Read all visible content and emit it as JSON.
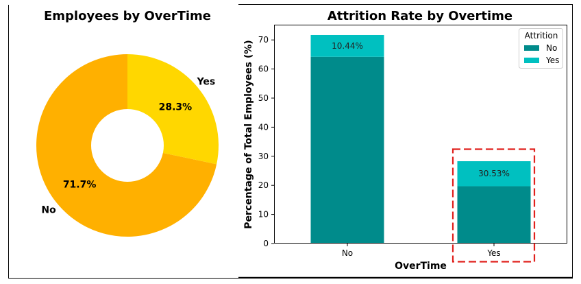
{
  "chart_data": [
    {
      "type": "pie",
      "title": "Employees by OverTime",
      "categories": [
        "No",
        "Yes"
      ],
      "values": [
        71.7,
        28.3
      ],
      "value_labels": [
        "71.7%",
        "28.3%"
      ],
      "colors": [
        "#ffb000",
        "#ffd700"
      ],
      "donut": true,
      "legend": "none"
    },
    {
      "type": "bar",
      "stacked": true,
      "title": "Attrition Rate by Overtime",
      "xlabel": "OverTime",
      "ylabel": "Percentage of Total Employees (%)",
      "categories": [
        "No",
        "Yes"
      ],
      "ylim": [
        0,
        75
      ],
      "yticks": [
        0,
        10,
        20,
        30,
        40,
        50,
        60,
        70
      ],
      "series": [
        {
          "name": "No",
          "values": [
            64.2,
            19.7
          ],
          "color": "#008b8b"
        },
        {
          "name": "Yes",
          "values": [
            7.5,
            8.6
          ],
          "color": "#00c0c0"
        }
      ],
      "bar_labels": [
        "10.44%",
        "30.53%"
      ],
      "legend": {
        "title": "Attrition",
        "placement": "top-right"
      },
      "highlight": {
        "category": "Yes",
        "color": "#e0201c",
        "style": "dashed"
      },
      "grid": false
    }
  ]
}
